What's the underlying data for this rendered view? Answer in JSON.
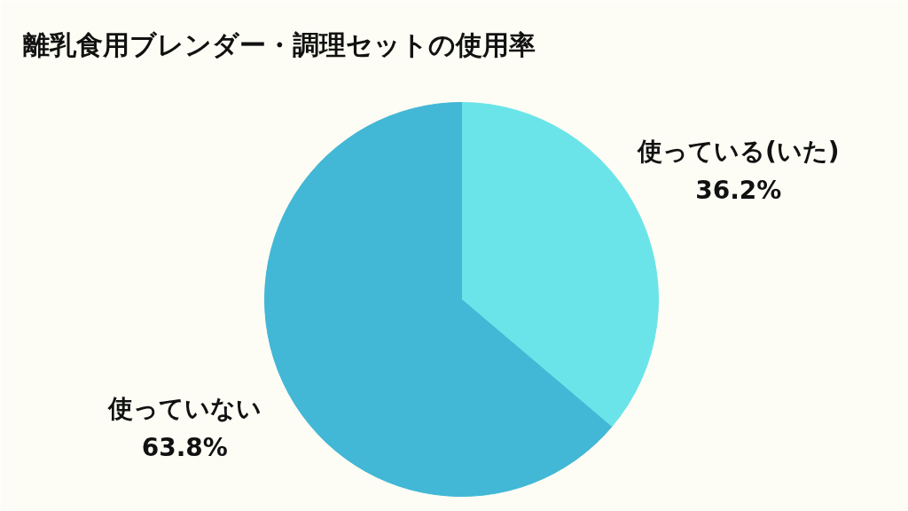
{
  "chart_data": {
    "type": "pie",
    "title": "離乳食用ブレンダー・調理セットの使用率",
    "categories": [
      "使っている(いた)",
      "使っていない"
    ],
    "values": [
      36.2,
      63.8
    ],
    "colors": [
      "#6ae4e8",
      "#42b7d6"
    ],
    "value_labels": [
      "36.2%",
      "63.8%"
    ]
  }
}
